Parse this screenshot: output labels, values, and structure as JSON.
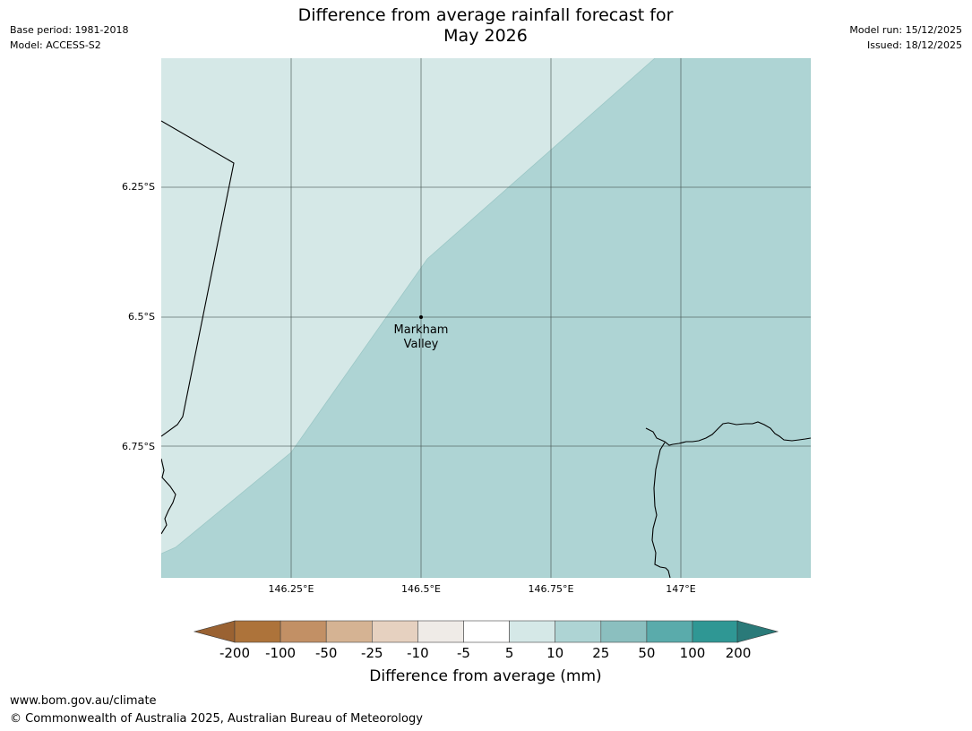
{
  "header": {
    "title_line1": "Difference from average rainfall forecast for",
    "title_line2": "May 2026",
    "base_period": "Base period: 1981-2018",
    "model": "Model: ACCESS-S2",
    "model_run": "Model run: 15/12/2025",
    "issued": "Issued: 18/12/2025"
  },
  "map": {
    "lat_labels": [
      "6.25°S",
      "6.5°S",
      "6.75°S"
    ],
    "lon_labels": [
      "146.25°E",
      "146.5°E",
      "146.75°E",
      "147°E"
    ],
    "place": {
      "name_line1": "Markham",
      "name_line2": "Valley"
    },
    "colors": {
      "low_category": "#d5e8e7",
      "high_category": "#aed4d4",
      "grid": "#4a5a58",
      "coast": "#000000"
    }
  },
  "colorbar": {
    "title": "Difference from average (mm)",
    "ticks": [
      "-200",
      "-100",
      "-50",
      "-25",
      "-10",
      "-5",
      "5",
      "10",
      "25",
      "50",
      "100",
      "200"
    ],
    "colors": {
      "extend_low": "#9a6232",
      "bins": [
        "#ad733a",
        "#c29065",
        "#d5b393",
        "#e6d1c0",
        "#efebe7",
        "#ffffff",
        "#d5e8e7",
        "#aed4d4",
        "#8bbfbf",
        "#5aabab",
        "#2f9794"
      ],
      "extend_high": "#2a7a79"
    }
  },
  "footer": {
    "url": "www.bom.gov.au/climate",
    "copyright": "© Commonwealth of Australia 2025, Australian Bureau of Meteorology"
  }
}
